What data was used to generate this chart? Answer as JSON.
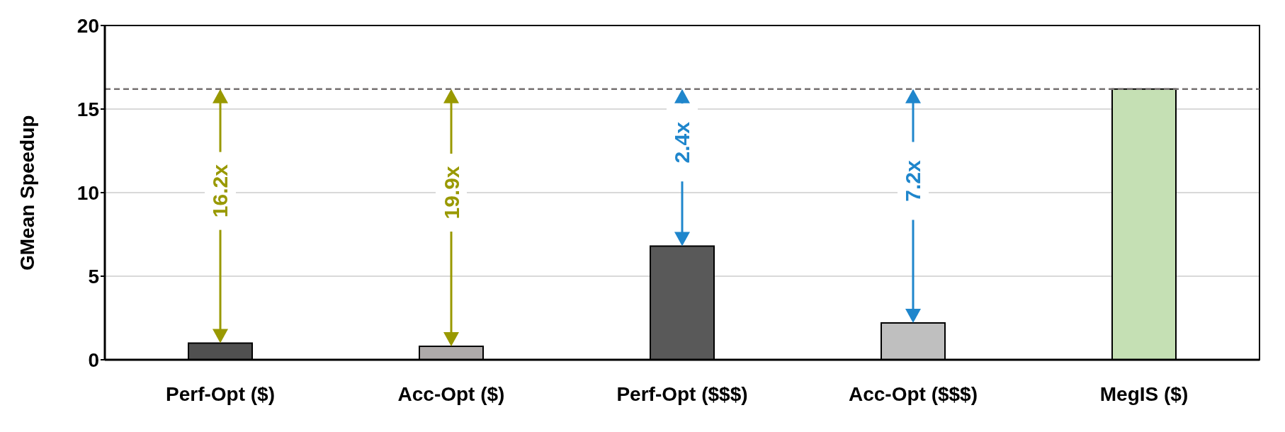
{
  "chart_data": {
    "type": "bar",
    "ylabel": "GMean Speedup",
    "categories": [
      "Perf-Opt ($)",
      "Acc-Opt ($)",
      "Perf-Opt ($$$)",
      "Acc-Opt ($$$)",
      "MegIS ($)"
    ],
    "values": [
      1.0,
      0.8,
      6.8,
      2.2,
      16.2
    ],
    "colors": [
      "#505050",
      "#aeaaaa",
      "#595959",
      "#bfbfbf",
      "#c5e0b4"
    ],
    "ylim": [
      0,
      20
    ],
    "yticks": [
      0,
      5,
      10,
      15,
      20
    ],
    "grid": "y",
    "legend": false,
    "ref_lines": [
      {
        "axis": "y",
        "value": 16.2,
        "color": "#767171",
        "line_style": "dashed"
      }
    ],
    "annotations": [
      "16.2x",
      "19.9x",
      "2.4x",
      "7.2x"
    ]
  }
}
